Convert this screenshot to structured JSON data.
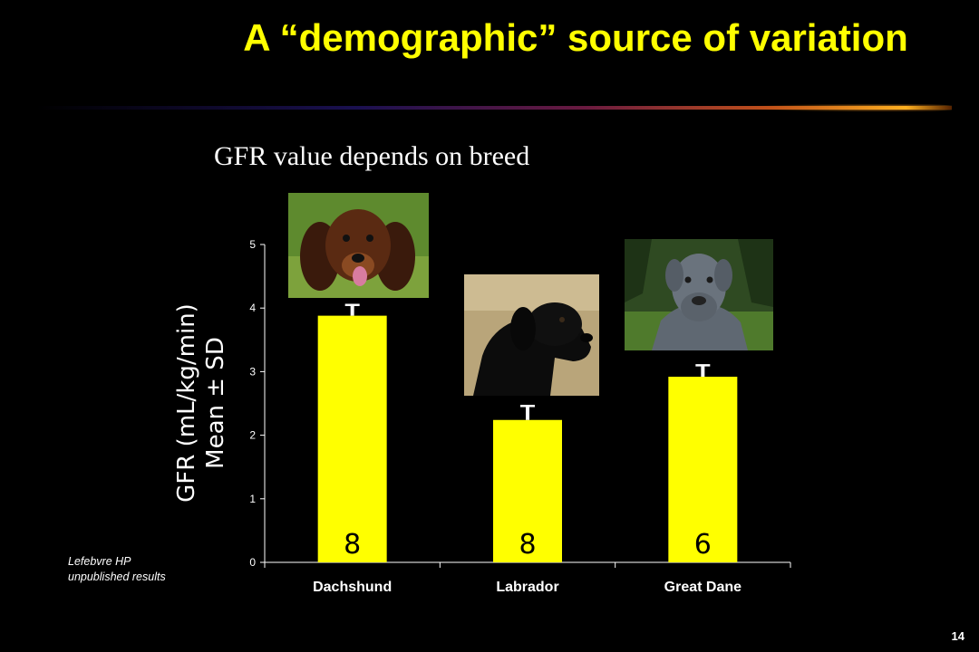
{
  "slide": {
    "title": "A “demographic” source of variation",
    "subtitle": "GFR value depends on breed",
    "source_line1": "Lefebvre HP",
    "source_line2": "unpublished results",
    "page_number": "14"
  },
  "photos": [
    {
      "breed": "Dachshund",
      "icon": "dachshund-photo"
    },
    {
      "breed": "Labrador",
      "icon": "labrador-photo"
    },
    {
      "breed": "Great Dane",
      "icon": "great-dane-photo"
    }
  ],
  "colors": {
    "title": "#ffff00",
    "bar": "#ffff00",
    "background": "#000000",
    "text": "#ffffff"
  },
  "chart_data": {
    "type": "bar",
    "categories": [
      "Dachshund",
      "Labrador",
      "Great Dane"
    ],
    "values": [
      3.88,
      2.24,
      2.92
    ],
    "error": [
      0.17,
      0.22,
      0.18
    ],
    "n_labels": [
      "8",
      "8",
      "6"
    ],
    "ylabel_line1": "GFR (mL/kg/min)",
    "ylabel_line2": "Mean ± SD",
    "ylim": [
      0,
      5
    ],
    "yticks": [
      0,
      1,
      2,
      3,
      4,
      5
    ],
    "grid": false,
    "legend": "none"
  }
}
